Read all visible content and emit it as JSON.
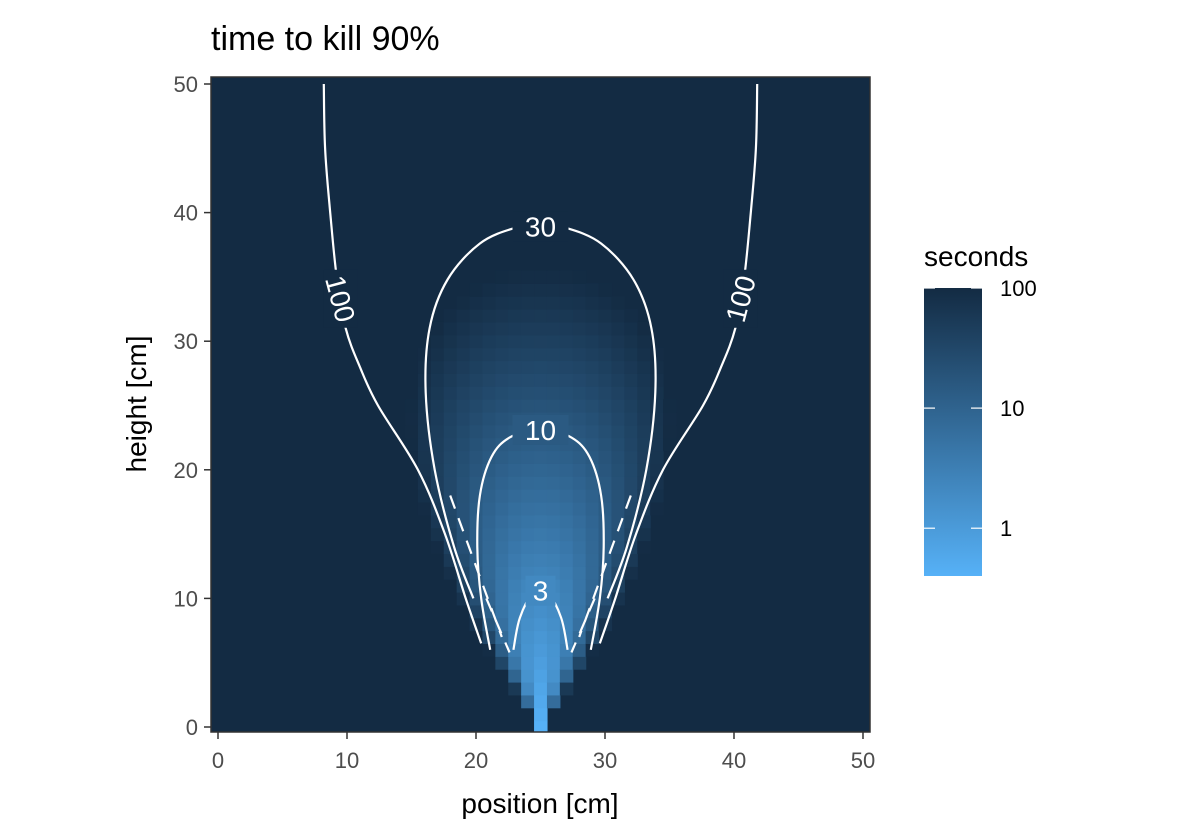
{
  "chart_data": {
    "type": "heatmap",
    "title": "time to kill 90%",
    "xlabel": "position [cm]",
    "ylabel": "height [cm]",
    "xlim": [
      0,
      50
    ],
    "ylim": [
      0,
      50
    ],
    "x_ticks": [
      "0",
      "10",
      "20",
      "30",
      "40",
      "50"
    ],
    "y_ticks": [
      "0",
      "10",
      "20",
      "30",
      "40",
      "50"
    ],
    "x_tick_values": [
      0,
      10,
      20,
      30,
      40,
      50
    ],
    "y_tick_values": [
      0,
      10,
      20,
      30,
      40,
      50
    ],
    "grid": false,
    "color_scale": {
      "title": "seconds",
      "scale": "log10",
      "min": 0.4,
      "max": 100,
      "low_color": "#56B1F7",
      "high_color": "#132B43",
      "breaks": [
        100,
        10,
        1
      ],
      "break_labels": [
        "100",
        "10",
        "1"
      ],
      "legend_position": "right"
    },
    "source": {
      "position": [
        25,
        0
      ],
      "value_at_source": 0.4
    },
    "contours": [
      {
        "level": 3,
        "label": "3",
        "points": [
          [
            22.9,
            6
          ],
          [
            23.4,
            8.5
          ],
          [
            24.5,
            10.6
          ],
          [
            25.5,
            10.6
          ],
          [
            26.6,
            8.5
          ],
          [
            27.1,
            6
          ]
        ]
      },
      {
        "level": 10,
        "label": "10",
        "points": [
          [
            21.1,
            6
          ],
          [
            20.4,
            10
          ],
          [
            20.1,
            14
          ],
          [
            20.3,
            18
          ],
          [
            21.2,
            21
          ],
          [
            22.6,
            22.5
          ],
          [
            25,
            23.2
          ],
          [
            27.4,
            22.5
          ],
          [
            28.8,
            21
          ],
          [
            29.7,
            18
          ],
          [
            29.9,
            14
          ],
          [
            29.6,
            10
          ],
          [
            28.9,
            6
          ]
        ]
      },
      {
        "level": 30,
        "label": "30",
        "points": [
          [
            19.8,
            10
          ],
          [
            18.3,
            14
          ],
          [
            16.8,
            20
          ],
          [
            16.1,
            26
          ],
          [
            16.4,
            31
          ],
          [
            17.8,
            34.8
          ],
          [
            20.3,
            37.6
          ],
          [
            23,
            38.8
          ],
          [
            25,
            39
          ],
          [
            27,
            38.8
          ],
          [
            29.7,
            37.6
          ],
          [
            32.2,
            34.8
          ],
          [
            33.6,
            31
          ],
          [
            33.9,
            26
          ],
          [
            33.2,
            20
          ],
          [
            31.7,
            14
          ],
          [
            30.2,
            10
          ]
        ]
      },
      {
        "level": 100,
        "label": "100",
        "points": [
          [
            20.4,
            6.5
          ],
          [
            19.2,
            10
          ],
          [
            17.6,
            15
          ],
          [
            15.5,
            20
          ],
          [
            12.4,
            25
          ],
          [
            11,
            28
          ],
          [
            9.9,
            31
          ],
          [
            9.2,
            35
          ],
          [
            8.7,
            40
          ],
          [
            8.3,
            45
          ],
          [
            8.2,
            50
          ]
        ],
        "mirror": true
      }
    ]
  }
}
